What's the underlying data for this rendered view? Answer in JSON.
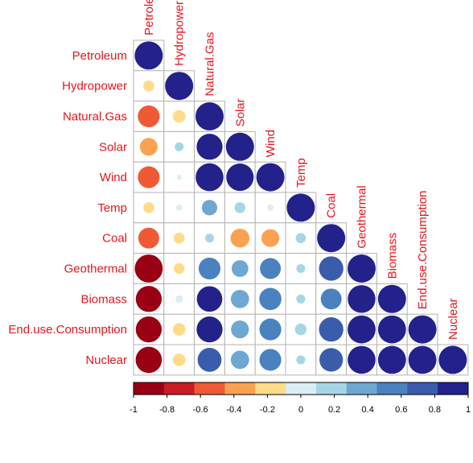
{
  "chart_data": {
    "type": "heatmap",
    "subtype": "correlation-matrix-lower-triangle",
    "variables": [
      "Petroleum",
      "Hydropower",
      "Natural.Gas",
      "Solar",
      "Wind",
      "Temp",
      "Coal",
      "Geothermal",
      "Biomass",
      "End.use.Consumption",
      "Nuclear"
    ],
    "column_labels": [
      "Petroleum",
      "Hydropower",
      "Natural.Gas",
      "Solar",
      "Wind",
      "Temp",
      "Coal",
      "Geothermal",
      "Biomass",
      "End.use.Consumption",
      "Nuclear"
    ],
    "matrix": [
      [
        1.0
      ],
      [
        -0.15,
        1.0
      ],
      [
        -0.6,
        -0.2,
        1.0
      ],
      [
        -0.4,
        0.1,
        0.85,
        1.0
      ],
      [
        -0.6,
        0.03,
        0.98,
        0.95,
        1.0
      ],
      [
        -0.15,
        -0.05,
        0.3,
        0.15,
        -0.05,
        1.0
      ],
      [
        -0.55,
        -0.15,
        0.1,
        -0.45,
        -0.4,
        0.13,
        1.0
      ],
      [
        -0.99,
        -0.15,
        0.6,
        0.35,
        0.55,
        0.1,
        0.75,
        1.0
      ],
      [
        -0.85,
        -0.07,
        0.82,
        0.42,
        0.62,
        0.1,
        0.55,
        0.97,
        1.0
      ],
      [
        -0.85,
        -0.2,
        0.85,
        0.4,
        0.6,
        0.17,
        0.75,
        0.99,
        0.99,
        1.0
      ],
      [
        -0.87,
        -0.2,
        0.72,
        0.42,
        0.6,
        0.1,
        0.7,
        0.98,
        0.99,
        0.99,
        1.0
      ]
    ],
    "colorbar": {
      "ticks": [
        "-1",
        "-0.8",
        "-0.6",
        "-0.4",
        "-0.2",
        "0",
        "0.2",
        "0.4",
        "0.6",
        "0.8",
        "1"
      ],
      "range": [
        -1,
        1
      ],
      "colors": [
        "#990014",
        "#ca1c22",
        "#ef5a34",
        "#fba252",
        "#fedb89",
        "#dbeef3",
        "#a6d6e6",
        "#6ea7d2",
        "#4a81bf",
        "#3a5dab",
        "#23228b"
      ]
    },
    "title": "",
    "xlabel": "",
    "ylabel": "",
    "colors": {
      "label": "#e8141c",
      "grid": "#b3b3b3"
    }
  }
}
